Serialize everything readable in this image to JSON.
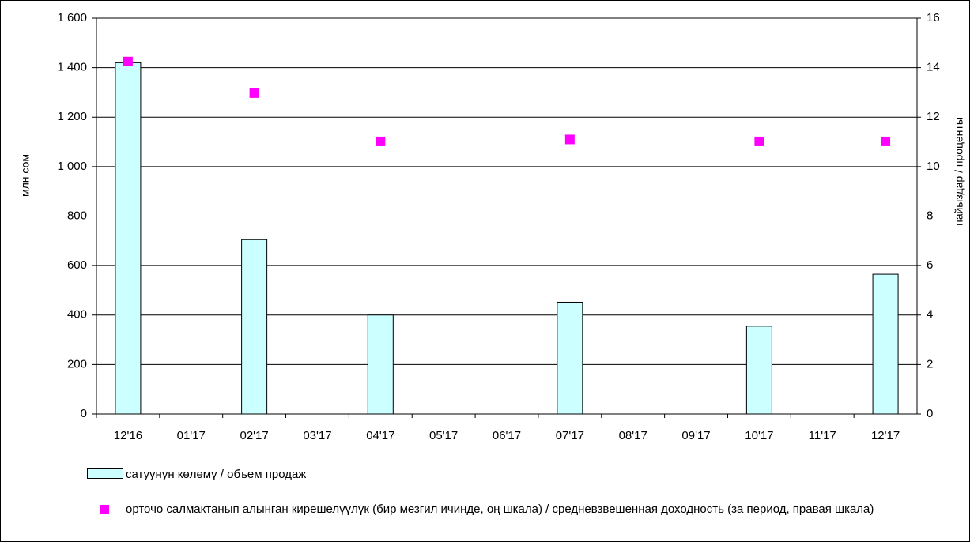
{
  "chart_data": {
    "type": "bar",
    "categories": [
      "12'16",
      "01'17",
      "02'17",
      "03'17",
      "04'17",
      "05'17",
      "06'17",
      "07'17",
      "08'17",
      "09'17",
      "10'17",
      "11'17",
      "12'17"
    ],
    "series": [
      {
        "name": "сатуунун көлөмү /  объем продаж",
        "type": "bar",
        "color": "#ccffff",
        "values": [
          1420,
          null,
          705,
          null,
          400,
          null,
          null,
          452,
          null,
          null,
          355,
          null,
          565
        ]
      },
      {
        "name": "орточо салмактанып алынган кирешелүүлүк (бир мезгил ичинде, оң шкала) / средневзвешенная доходность (за период, правая шкала)",
        "type": "line",
        "axis": "y2",
        "color": "#ff00ff",
        "values": [
          14.25,
          null,
          12.97,
          null,
          11.02,
          null,
          null,
          11.1,
          null,
          null,
          11.02,
          null,
          11.02
        ]
      }
    ],
    "ylabel": "млн сом",
    "y2label": "пайыздар / проценты",
    "ylim": [
      0,
      1600
    ],
    "yticks": [
      0,
      200,
      400,
      600,
      800,
      {
        "value": 1000,
        "label": "1 000"
      },
      {
        "value": 1200,
        "label": "1 200"
      },
      {
        "value": 1400,
        "label": "1 400"
      },
      {
        "value": 1600,
        "label": "1 600"
      }
    ],
    "y2lim": [
      0,
      16
    ],
    "y2ticks": [
      0,
      2,
      4,
      6,
      8,
      10,
      12,
      14,
      16
    ],
    "grid": true
  }
}
